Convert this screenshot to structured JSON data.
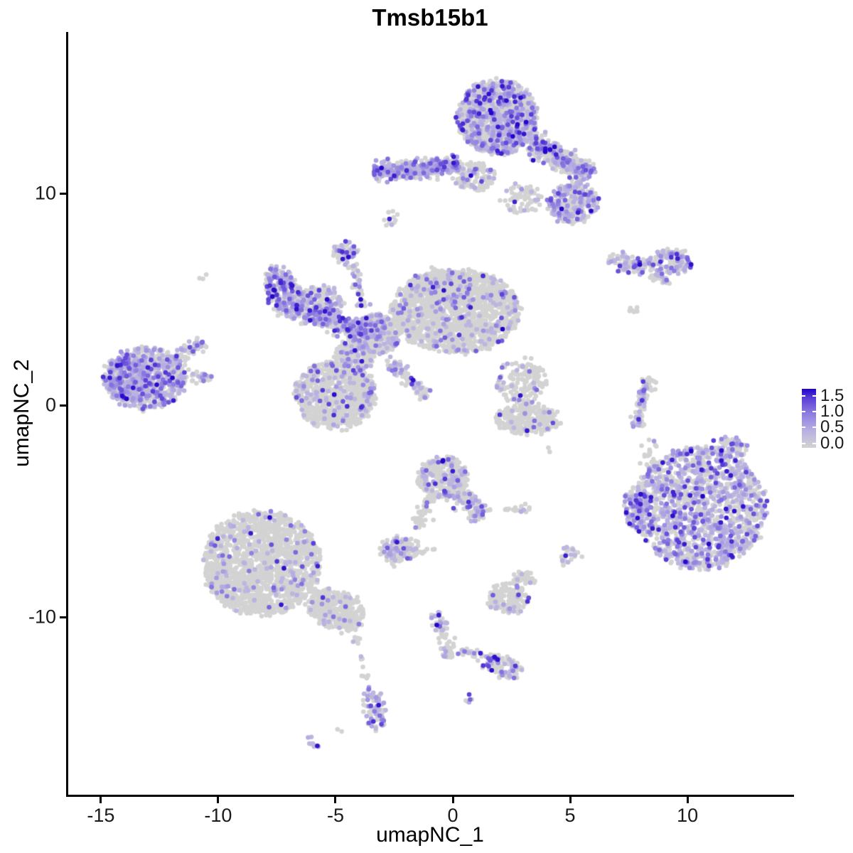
{
  "title": "Tmsb15b1",
  "chart_data": {
    "type": "scatter",
    "title": "Tmsb15b1",
    "xlabel": "umapNC_1",
    "ylabel": "umapNC_2",
    "x_ticks": [
      -15,
      -10,
      -5,
      0,
      5,
      10
    ],
    "y_ticks": [
      -10,
      0,
      10
    ],
    "x_range": [
      -16.42,
      14.48
    ],
    "y_range": [
      -18.39,
      17.62
    ],
    "grid": false,
    "legend": {
      "position": "right",
      "values": [
        1.5,
        1.0,
        0.5,
        0.0
      ],
      "tick_labels": [
        "1.5",
        "1.0",
        "0.5",
        "0.0"
      ],
      "value_min": -0.14,
      "value_max": 1.72
    },
    "colors": {
      "background": "#ffffff",
      "axis": "#000000",
      "zero_expression": "#d3d3d3",
      "gradient_stops": [
        [
          0,
          "#d3d3d3"
        ],
        [
          0.3,
          "#b7afe2"
        ],
        [
          0.6,
          "#8a78e0"
        ],
        [
          0.85,
          "#5a3cd7"
        ],
        [
          1,
          "#1e00c8"
        ]
      ]
    },
    "point": {
      "radius": 3.3,
      "seed": 42,
      "value_min": 0.4,
      "value_span": 1.3,
      "value_pow": 3.5
    },
    "clusters": [
      {
        "name": "top-main",
        "kind": "blob",
        "cx": 1.91,
        "cy": 13.59,
        "rx": 1.7,
        "ry": 1.75,
        "rot": 0,
        "n": 1300,
        "frac": 0.32
      },
      {
        "name": "top-right-wing",
        "kind": "strip",
        "x1": 3.3,
        "y1": 12.42,
        "x2": 5.91,
        "y2": 10.91,
        "w": 0.5,
        "n": 450,
        "frac": 0.28
      },
      {
        "name": "top-right-blob",
        "kind": "blob",
        "cx": 5.09,
        "cy": 9.56,
        "rx": 1.06,
        "ry": 0.94,
        "rot": 0,
        "n": 280,
        "frac": 0.45
      },
      {
        "name": "top-left-arm",
        "kind": "strip",
        "x1": -3.39,
        "y1": 10.97,
        "x2": 0.24,
        "y2": 11.34,
        "w": 0.38,
        "n": 420,
        "frac": 0.55
      },
      {
        "name": "top-connector",
        "kind": "blob",
        "cx": 0.94,
        "cy": 10.81,
        "rx": 0.9,
        "ry": 0.67,
        "rot": 0,
        "n": 140,
        "frac": 0.2
      },
      {
        "name": "top-under-bits",
        "kind": "blob",
        "cx": 2.97,
        "cy": 9.73,
        "rx": 0.9,
        "ry": 0.67,
        "rot": 0,
        "n": 70,
        "frac": 0.12
      },
      {
        "name": "speck-upper",
        "kind": "blob",
        "cx": -2.7,
        "cy": 8.76,
        "rx": 0.35,
        "ry": 0.42,
        "rot": -30,
        "n": 12,
        "frac": 0.1
      },
      {
        "name": "ne-band-left",
        "kind": "blob",
        "cx": 7.52,
        "cy": 6.68,
        "rx": 0.95,
        "ry": 0.4,
        "rot": -8,
        "n": 90,
        "frac": 0.38
      },
      {
        "name": "ne-band-right",
        "kind": "blob",
        "cx": 9.33,
        "cy": 6.78,
        "rx": 0.95,
        "ry": 0.6,
        "rot": 0,
        "n": 130,
        "frac": 0.42
      },
      {
        "name": "ne-tail",
        "kind": "strip",
        "x1": 8.55,
        "y1": 6.2,
        "x2": 9.2,
        "y2": 5.7,
        "w": 0.2,
        "n": 26,
        "frac": 0.4
      },
      {
        "name": "ne-stray",
        "kind": "blob",
        "cx": 7.73,
        "cy": 4.6,
        "rx": 0.25,
        "ry": 0.25,
        "rot": 0,
        "n": 7,
        "frac": 0.3
      },
      {
        "name": "mid-nub",
        "kind": "blob",
        "cx": -4.55,
        "cy": 7.21,
        "rx": 0.5,
        "ry": 0.55,
        "rot": 0,
        "n": 55,
        "frac": 0.6
      },
      {
        "name": "mid-nub-strand",
        "kind": "strip",
        "x1": -4.3,
        "y1": 6.6,
        "x2": -3.85,
        "y2": 4.6,
        "w": 0.22,
        "n": 45,
        "frac": 0.3
      },
      {
        "name": "mid-left-arm",
        "kind": "blob",
        "cx": -7.18,
        "cy": 5.3,
        "rx": 0.72,
        "ry": 1.3,
        "rot": 18,
        "n": 280,
        "frac": 0.55
      },
      {
        "name": "mid-left-arm2",
        "kind": "blob",
        "cx": -5.73,
        "cy": 4.77,
        "rx": 1.0,
        "ry": 0.85,
        "rot": 0,
        "n": 220,
        "frac": 0.32
      },
      {
        "name": "mid-band",
        "kind": "strip",
        "x1": -6.2,
        "y1": 4.4,
        "x2": -3.4,
        "y2": 3.3,
        "w": 0.5,
        "n": 280,
        "frac": 0.5
      },
      {
        "name": "mid-main-lobe",
        "kind": "blob",
        "cx": 0.09,
        "cy": 4.43,
        "rx": 2.75,
        "ry": 1.95,
        "rot": 0,
        "n": 1500,
        "frac": 0.1
      },
      {
        "name": "mid-main-top",
        "kind": "blob",
        "cx": -0.5,
        "cy": 5.7,
        "rx": 1.3,
        "ry": 0.7,
        "rot": 0,
        "n": 200,
        "frac": 0.12
      },
      {
        "name": "mid-crossing",
        "kind": "blob",
        "cx": -3.24,
        "cy": 3.36,
        "rx": 0.95,
        "ry": 0.95,
        "rot": 0,
        "n": 300,
        "frac": 0.22
      },
      {
        "name": "mid-lower-lobe",
        "kind": "blob",
        "cx": -5.0,
        "cy": 0.5,
        "rx": 1.7,
        "ry": 1.6,
        "rot": 0,
        "n": 900,
        "frac": 0.11
      },
      {
        "name": "mid-diag-strand",
        "kind": "strip",
        "x1": -2.8,
        "y1": 2.2,
        "x2": -1.1,
        "y2": 0.35,
        "w": 0.3,
        "n": 90,
        "frac": 0.3
      },
      {
        "name": "mid-neck",
        "kind": "blob",
        "cx": -4.15,
        "cy": 2.35,
        "rx": 0.8,
        "ry": 0.75,
        "rot": 0,
        "n": 160,
        "frac": 0.18
      },
      {
        "name": "west-main",
        "kind": "blob",
        "cx": -13.09,
        "cy": 1.28,
        "rx": 1.8,
        "ry": 1.45,
        "rot": 0,
        "n": 600,
        "frac": 0.42
      },
      {
        "name": "west-dense",
        "kind": "blob",
        "cx": -13.85,
        "cy": 1.17,
        "rx": 0.95,
        "ry": 1.05,
        "rot": 0,
        "n": 250,
        "frac": 0.6
      },
      {
        "name": "west-arm",
        "kind": "strip",
        "x1": -12.2,
        "y1": 2.0,
        "x2": -10.6,
        "y2": 2.9,
        "w": 0.3,
        "n": 70,
        "frac": 0.35
      },
      {
        "name": "west-spike",
        "kind": "blob",
        "cx": -10.76,
        "cy": 1.28,
        "rx": 0.5,
        "ry": 0.3,
        "rot": 0,
        "n": 25,
        "frac": 0.3
      },
      {
        "name": "west-singleton",
        "kind": "blob",
        "cx": -10.6,
        "cy": 6.0,
        "rx": 0.15,
        "ry": 0.12,
        "rot": 0,
        "n": 3,
        "frac": 0
      },
      {
        "name": "center-upper-scatter",
        "kind": "blob",
        "cx": 2.91,
        "cy": 1.11,
        "rx": 1.05,
        "ry": 1.1,
        "rot": 0,
        "n": 150,
        "frac": 0.09
      },
      {
        "name": "center-boat",
        "kind": "blob",
        "cx": 3.18,
        "cy": -0.67,
        "rx": 1.4,
        "ry": 0.7,
        "rot": 0,
        "n": 280,
        "frac": 0.05
      },
      {
        "name": "center-stray",
        "kind": "blob",
        "cx": 4.12,
        "cy": -2.08,
        "rx": 0.12,
        "ry": 0.12,
        "rot": 0,
        "n": 2,
        "frac": 0
      },
      {
        "name": "east-strip-a",
        "kind": "strip",
        "x1": 8.45,
        "y1": 1.25,
        "x2": 7.95,
        "y2": 0.2,
        "w": 0.28,
        "n": 50,
        "frac": 0.35
      },
      {
        "name": "east-strip-b",
        "kind": "strip",
        "x1": 7.95,
        "y1": 0.2,
        "x2": 7.9,
        "y2": -1.0,
        "w": 0.28,
        "n": 45,
        "frac": 0.35
      },
      {
        "name": "east-strip-strays",
        "kind": "blob",
        "cx": 8.3,
        "cy": -2.3,
        "rx": 0.5,
        "ry": 0.6,
        "rot": 0,
        "n": 4,
        "frac": 0
      },
      {
        "name": "se-main",
        "kind": "blob",
        "cx": 10.55,
        "cy": -4.87,
        "rx": 2.8,
        "ry": 2.9,
        "rot": 0,
        "n": 1500,
        "frac": 0.45
      },
      {
        "name": "se-west-edge",
        "kind": "blob",
        "cx": 7.82,
        "cy": -4.87,
        "rx": 0.5,
        "ry": 1.0,
        "rot": 0,
        "n": 120,
        "frac": 0.6
      },
      {
        "name": "se-top-strays",
        "kind": "blob",
        "cx": 8.42,
        "cy": -2.68,
        "rx": 0.6,
        "ry": 1.1,
        "rot": 0,
        "n": 22,
        "frac": 0.05
      },
      {
        "name": "se-top-bump",
        "kind": "blob",
        "cx": 11.76,
        "cy": -2.01,
        "rx": 0.75,
        "ry": 0.5,
        "rot": 0,
        "n": 90,
        "frac": 0.3
      },
      {
        "name": "central-south",
        "kind": "blob",
        "cx": -0.45,
        "cy": -3.42,
        "rx": 1.05,
        "ry": 1.0,
        "rot": 0,
        "n": 320,
        "frac": 0.2
      },
      {
        "name": "central-south-ext",
        "kind": "strip",
        "x1": 0.2,
        "y1": -4.2,
        "x2": 1.35,
        "y2": -5.2,
        "w": 0.45,
        "n": 130,
        "frac": 0.2
      },
      {
        "name": "central-south-strand",
        "kind": "strip",
        "x1": -0.9,
        "y1": -4.4,
        "x2": -1.6,
        "y2": -5.9,
        "w": 0.25,
        "n": 50,
        "frac": 0.12
      },
      {
        "name": "small-west-blob",
        "kind": "blob",
        "cx": -2.27,
        "cy": -6.78,
        "rx": 0.85,
        "ry": 0.55,
        "rot": 0,
        "n": 130,
        "frac": 0.3
      },
      {
        "name": "small-west-bits",
        "kind": "blob",
        "cx": -2.6,
        "cy": -7.4,
        "rx": 0.25,
        "ry": 0.2,
        "rot": 0,
        "n": 7,
        "frac": 0
      },
      {
        "name": "small-west-pair",
        "kind": "blob",
        "cx": -1.15,
        "cy": -6.9,
        "rx": 0.35,
        "ry": 0.18,
        "rot": 0,
        "n": 9,
        "frac": 0
      },
      {
        "name": "small-east-pair",
        "kind": "blob",
        "cx": 4.94,
        "cy": -7.15,
        "rx": 0.45,
        "ry": 0.45,
        "rot": 0,
        "n": 26,
        "frac": 0.22
      },
      {
        "name": "sw-main",
        "kind": "blob",
        "cx": -8.15,
        "cy": -7.45,
        "rx": 2.5,
        "ry": 2.45,
        "rot": 0,
        "n": 1600,
        "frac": 0.07
      },
      {
        "name": "sw-ext",
        "kind": "blob",
        "cx": -5.0,
        "cy": -9.66,
        "rx": 1.3,
        "ry": 0.9,
        "rot": -25,
        "n": 350,
        "frac": 0.07
      },
      {
        "name": "sw-tail",
        "kind": "strip",
        "x1": -4.15,
        "y1": -10.9,
        "x2": -3.75,
        "y2": -13.0,
        "w": 0.2,
        "n": 16,
        "frac": 0.08
      },
      {
        "name": "south-small",
        "kind": "blob",
        "cx": 2.36,
        "cy": -9.13,
        "rx": 0.85,
        "ry": 0.72,
        "rot": 0,
        "n": 150,
        "frac": 0.18
      },
      {
        "name": "south-small-top",
        "kind": "blob",
        "cx": 3.0,
        "cy": -8.2,
        "rx": 0.4,
        "ry": 0.3,
        "rot": 0,
        "n": 35,
        "frac": 0.1
      },
      {
        "name": "south-flat",
        "kind": "blob",
        "cx": 2.76,
        "cy": -4.9,
        "rx": 0.6,
        "ry": 0.22,
        "rot": 0,
        "n": 18,
        "frac": 0.08
      },
      {
        "name": "south-strand",
        "kind": "strip",
        "x1": -0.75,
        "y1": -9.8,
        "x2": -0.15,
        "y2": -11.5,
        "w": 0.3,
        "n": 55,
        "frac": 0.28
      },
      {
        "name": "south-strand-end",
        "kind": "blob",
        "cx": -0.25,
        "cy": -11.7,
        "rx": 0.3,
        "ry": 0.3,
        "rot": 0,
        "n": 20,
        "frac": 0.3
      },
      {
        "name": "south-strand2",
        "kind": "strip",
        "x1": 0.25,
        "y1": -11.6,
        "x2": 1.25,
        "y2": -11.8,
        "w": 0.2,
        "n": 24,
        "frac": 0.5
      },
      {
        "name": "south-diag",
        "kind": "blob",
        "cx": 2.09,
        "cy": -12.35,
        "rx": 0.9,
        "ry": 0.5,
        "rot": -18,
        "n": 90,
        "frac": 0.35
      },
      {
        "name": "bottom-column",
        "kind": "blob",
        "cx": -3.36,
        "cy": -14.26,
        "rx": 0.42,
        "ry": 1.05,
        "rot": 8,
        "n": 75,
        "frac": 0.5
      },
      {
        "name": "bottom-dash",
        "kind": "blob",
        "cx": -5.97,
        "cy": -15.91,
        "rx": 0.32,
        "ry": 0.16,
        "rot": -30,
        "n": 10,
        "frac": 0.6
      },
      {
        "name": "bottom-dot",
        "kind": "blob",
        "cx": -4.85,
        "cy": -15.37,
        "rx": 0.1,
        "ry": 0.1,
        "rot": 0,
        "n": 2,
        "frac": 0
      },
      {
        "name": "bottom-pair",
        "kind": "blob",
        "cx": 0.64,
        "cy": -13.86,
        "rx": 0.18,
        "ry": 0.22,
        "rot": 0,
        "n": 6,
        "frac": 0.55
      }
    ],
    "highlight_points": [
      {
        "x": -2.7,
        "y": 8.79,
        "v": 1.55
      },
      {
        "x": 2.12,
        "y": 3.59,
        "v": 1.75
      },
      {
        "x": 3.48,
        "y": -0.74,
        "v": 1.1
      },
      {
        "x": 3.45,
        "y": -1.04,
        "v": 1.15
      },
      {
        "x": 10.6,
        "y": -3.05,
        "v": 1.6
      },
      {
        "x": 10.65,
        "y": -4.3,
        "v": 1.7
      },
      {
        "x": 12.0,
        "y": -5.0,
        "v": 1.65
      },
      {
        "x": -2.79,
        "y": -6.74,
        "v": 1.25
      },
      {
        "x": -1.58,
        "y": -5.77,
        "v": 0.85
      },
      {
        "x": -3.58,
        "y": -15.0,
        "v": 1.2
      },
      {
        "x": -14.2,
        "y": 1.28,
        "v": 1.5
      }
    ]
  }
}
